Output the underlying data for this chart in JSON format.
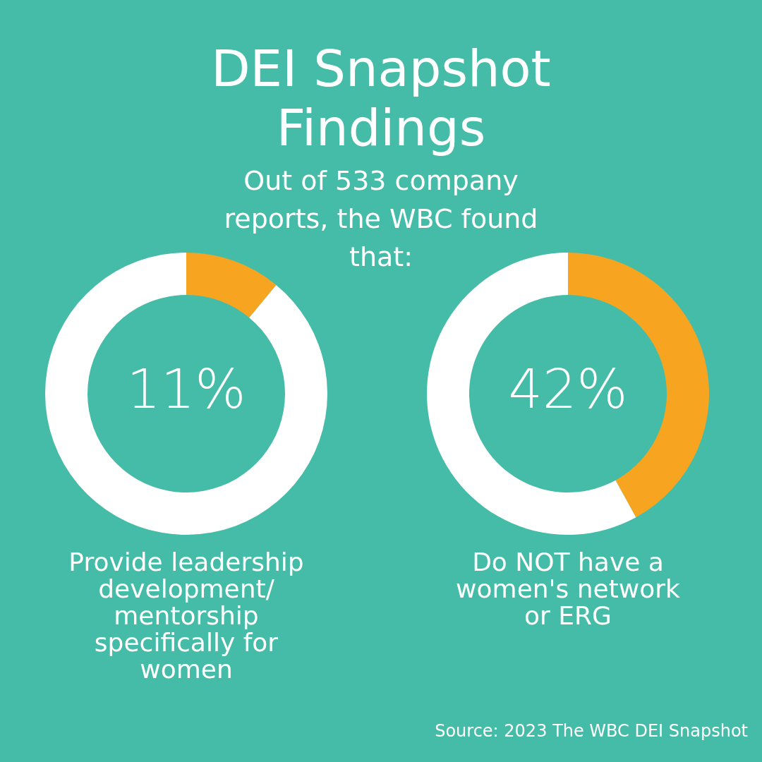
{
  "chart_data": [
    {
      "type": "donut",
      "title": "DEI Snapshot Findings",
      "subtitle": "Out of 533 company reports, the WBC found that:",
      "categories": [
        null,
        null
      ],
      "values": [
        11,
        89
      ],
      "colors": [
        "#f7a520",
        "#ffffff"
      ],
      "value_labels": [
        "11%",
        null
      ],
      "annotations": [
        "Provide leadership development/ mentorship specifically for women"
      ]
    },
    {
      "type": "donut",
      "categories": [
        null,
        null
      ],
      "values": [
        42,
        58
      ],
      "colors": [
        "#f7a520",
        "#ffffff"
      ],
      "value_labels": [
        "42%",
        null
      ],
      "annotations": [
        "Do NOT have a women's network or ERG",
        "Source: 2023 The WBC DEI Snapshot"
      ]
    }
  ]
}
